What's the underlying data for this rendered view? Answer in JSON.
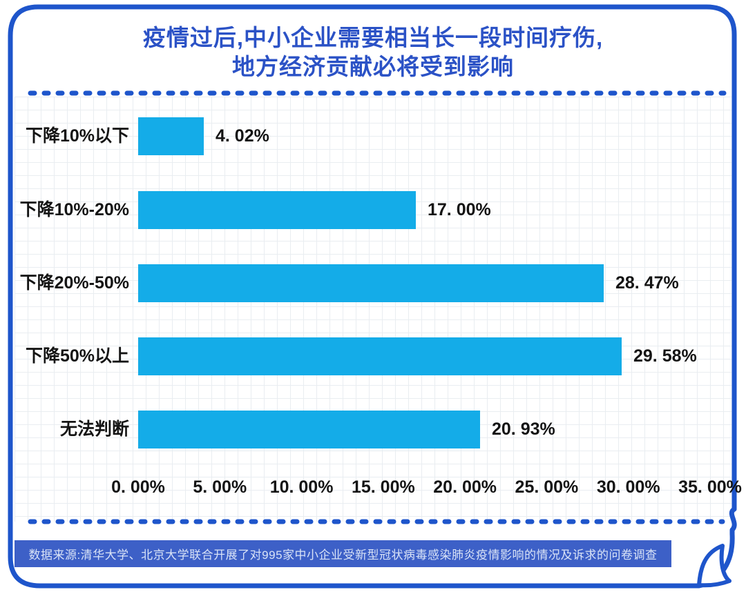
{
  "title": {
    "line1": "疫情过后,中小企业需要相当长一段时间疗伤,",
    "line2": "地方经济贡献必将受到影响",
    "color": "#2B52C6"
  },
  "chart_data": {
    "type": "bar",
    "orientation": "horizontal",
    "title": "疫情过后,中小企业需要相当长一段时间疗伤,地方经济贡献必将受到影响",
    "categories": [
      "下降10%以下",
      "下降10%-20%",
      "下降20%-50%",
      "下降50%以上",
      "无法判断"
    ],
    "values": [
      4.02,
      17.0,
      28.47,
      29.58,
      20.93
    ],
    "value_labels": [
      "4. 02%",
      "17. 00%",
      "28. 47%",
      "29. 58%",
      "20. 93%"
    ],
    "x_tick_labels": [
      "0. 00%",
      "5. 00%",
      "10. 00%",
      "15. 00%",
      "20. 00%",
      "25. 00%",
      "30. 00%",
      "35. 00%"
    ],
    "xlim": [
      0,
      35
    ],
    "grid": true,
    "legend": "none",
    "bar_color": "#14ACE8"
  },
  "footer": {
    "text": "数据来源:清华大学、北京大学联合开展了对995家中小企业受新型冠状病毒感染肺炎疫情影响的情况及诉求的问卷调查",
    "bg": "#3D60C7",
    "text_color": "#D9E3F7"
  },
  "theme": {
    "frame_color": "#1E55CB",
    "grid_color": "#e9edf1",
    "label_color": "#141414"
  }
}
